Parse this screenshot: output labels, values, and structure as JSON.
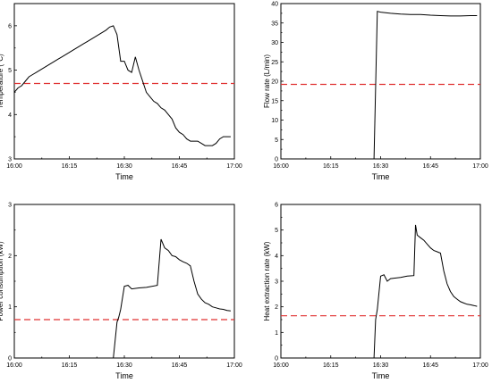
{
  "chart_data": [
    {
      "type": "line",
      "xlabel": "Time",
      "ylabel": "Temperature (°C)",
      "xticks": [
        "16:00",
        "16:15",
        "16:30",
        "16:45",
        "17:00"
      ],
      "xlim": [
        0,
        60
      ],
      "ylim": [
        3,
        6.5
      ],
      "yticks": [
        3,
        4,
        5,
        6
      ],
      "reference_line": 4.7,
      "series": [
        {
          "x": [
            0,
            1,
            2,
            3,
            4,
            5,
            6,
            7,
            8,
            9,
            10,
            11,
            12,
            13,
            14,
            15,
            16,
            17,
            18,
            19,
            20,
            21,
            22,
            23,
            24,
            25,
            26,
            27,
            28,
            29,
            30,
            31,
            32,
            33,
            34,
            35,
            36,
            37,
            38,
            39,
            40,
            41,
            42,
            43,
            44,
            45,
            46,
            47,
            48,
            49,
            50,
            51,
            52,
            53,
            54,
            55,
            56,
            57,
            58,
            59
          ],
          "y": [
            4.5,
            4.6,
            4.65,
            4.75,
            4.85,
            4.9,
            4.95,
            5.0,
            5.05,
            5.1,
            5.15,
            5.2,
            5.25,
            5.3,
            5.35,
            5.4,
            5.45,
            5.5,
            5.55,
            5.6,
            5.65,
            5.7,
            5.75,
            5.8,
            5.85,
            5.9,
            5.97,
            6.0,
            5.8,
            5.2,
            5.2,
            5.0,
            4.95,
            5.3,
            5.0,
            4.75,
            4.5,
            4.4,
            4.3,
            4.25,
            4.15,
            4.1,
            4.0,
            3.9,
            3.7,
            3.6,
            3.55,
            3.45,
            3.4,
            3.4,
            3.4,
            3.35,
            3.3,
            3.3,
            3.3,
            3.35,
            3.45,
            3.5,
            3.5,
            3.5
          ]
        }
      ]
    },
    {
      "type": "line",
      "xlabel": "Time",
      "ylabel": "Flow rate (L/min)",
      "xticks": [
        "16:00",
        "16:15",
        "16:30",
        "16:45",
        "17:00"
      ],
      "xlim": [
        0,
        60
      ],
      "ylim": [
        0,
        40
      ],
      "yticks": [
        0,
        5,
        10,
        15,
        20,
        25,
        30,
        35,
        40
      ],
      "reference_line": 19.2,
      "series": [
        {
          "x": [
            28,
            29,
            30,
            33,
            36,
            39,
            42,
            45,
            48,
            51,
            54,
            57,
            59
          ],
          "y": [
            0,
            38,
            37.8,
            37.5,
            37.3,
            37.2,
            37.2,
            37.0,
            36.9,
            36.8,
            36.8,
            36.9,
            36.9
          ]
        }
      ]
    },
    {
      "type": "line",
      "xlabel": "Time",
      "ylabel": "Power consumption (kW)",
      "xticks": [
        "16:00",
        "16:15",
        "16:30",
        "16:45",
        "17:00"
      ],
      "xlim": [
        0,
        60
      ],
      "ylim": [
        0,
        3
      ],
      "yticks": [
        0,
        1,
        2,
        3
      ],
      "reference_line": 0.75,
      "series": [
        {
          "x": [
            27,
            28,
            28.5,
            29,
            30,
            31,
            32,
            34,
            36,
            39,
            40,
            41,
            42,
            43,
            44,
            45,
            46,
            47,
            48,
            49,
            50,
            51,
            52,
            53,
            54,
            55,
            56,
            57,
            58,
            59
          ],
          "y": [
            0,
            0.7,
            0.8,
            0.95,
            1.4,
            1.42,
            1.35,
            1.37,
            1.38,
            1.42,
            2.32,
            2.15,
            2.1,
            2.0,
            1.98,
            1.92,
            1.88,
            1.85,
            1.8,
            1.5,
            1.25,
            1.15,
            1.08,
            1.05,
            1.0,
            0.98,
            0.96,
            0.95,
            0.93,
            0.92
          ]
        }
      ]
    },
    {
      "type": "line",
      "xlabel": "Time",
      "ylabel": "Heat extraction rate (kW)",
      "xticks": [
        "16:00",
        "16:15",
        "16:30",
        "16:45",
        "17:00"
      ],
      "xlim": [
        0,
        60
      ],
      "ylim": [
        0,
        6
      ],
      "yticks": [
        0,
        1,
        2,
        3,
        4,
        5,
        6
      ],
      "reference_line": 1.65,
      "series": [
        {
          "x": [
            28,
            28.5,
            29,
            30,
            31,
            32,
            33,
            34,
            36,
            38,
            40,
            40.5,
            41,
            42,
            43,
            44,
            45,
            46,
            47,
            48,
            49,
            50,
            51,
            52,
            53,
            54,
            55,
            56,
            57,
            58,
            59
          ],
          "y": [
            0,
            1.5,
            1.9,
            3.2,
            3.25,
            3.0,
            3.1,
            3.12,
            3.15,
            3.2,
            3.22,
            5.2,
            4.8,
            4.7,
            4.6,
            4.45,
            4.3,
            4.2,
            4.15,
            4.1,
            3.4,
            2.9,
            2.6,
            2.4,
            2.3,
            2.2,
            2.15,
            2.1,
            2.08,
            2.05,
            2.02
          ]
        }
      ]
    }
  ]
}
